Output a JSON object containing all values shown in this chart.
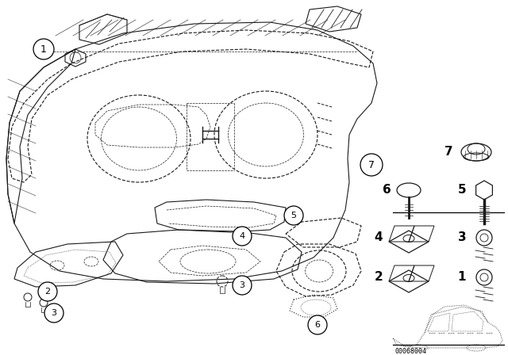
{
  "bg_color": "#ffffff",
  "line_color": "#1a1a1a",
  "figsize": [
    6.4,
    4.48
  ],
  "dpi": 100,
  "footer_text": "00068004"
}
